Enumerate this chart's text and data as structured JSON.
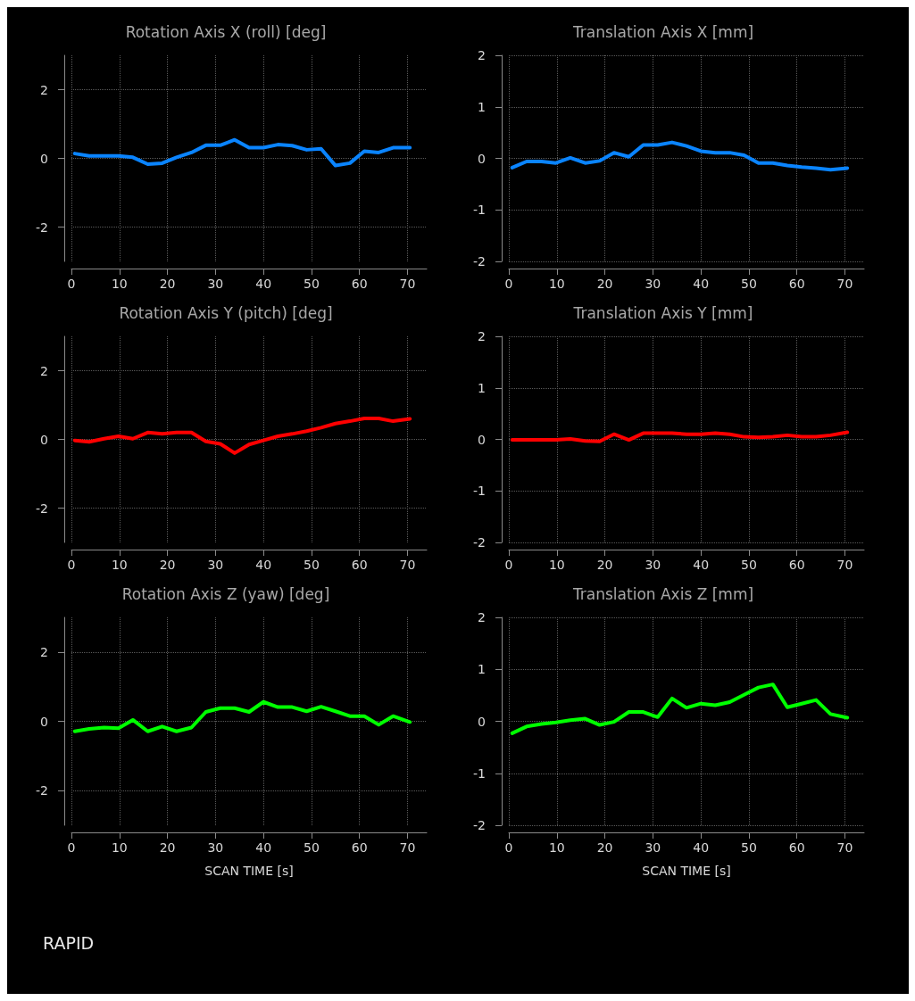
{
  "chart_data": [
    {
      "type": "line",
      "title": "Rotation Axis X (roll) [deg]",
      "x": [
        0.7,
        3.7,
        6.8,
        9.8,
        12.8,
        15.9,
        18.9,
        21.9,
        25,
        28,
        31,
        34,
        37,
        40,
        43,
        46,
        49,
        52,
        55,
        58,
        61,
        64,
        67,
        70.5
      ],
      "series": [
        {
          "color": "#0a84ff",
          "values": [
            0.14,
            0.07,
            0.07,
            0.07,
            0.03,
            -0.17,
            -0.14,
            0.03,
            0.17,
            0.38,
            0.38,
            0.54,
            0.31,
            0.31,
            0.4,
            0.37,
            0.25,
            0.28,
            -0.21,
            -0.14,
            0.21,
            0.17,
            0.31,
            0.31
          ]
        }
      ],
      "xlim": [
        0,
        74
      ],
      "xticks": [
        0,
        10,
        20,
        30,
        40,
        50,
        60,
        70
      ],
      "ylim": [
        -3,
        3
      ],
      "yticks": [
        -2,
        0,
        2
      ],
      "grid": true,
      "tick_labels": "xy"
    },
    {
      "type": "line",
      "title": "Translation Axis X [mm]",
      "x": [
        0.7,
        3.7,
        6.8,
        9.8,
        12.8,
        15.9,
        18.9,
        21.9,
        25,
        28,
        31,
        34,
        37,
        40,
        43,
        46,
        49,
        52,
        55,
        58,
        61,
        64,
        67,
        70.5
      ],
      "series": [
        {
          "color": "#0a84ff",
          "values": [
            -0.18,
            -0.06,
            -0.06,
            -0.09,
            0.01,
            -0.09,
            -0.05,
            0.11,
            0.03,
            0.26,
            0.26,
            0.31,
            0.24,
            0.14,
            0.11,
            0.11,
            0.06,
            -0.09,
            -0.09,
            -0.14,
            -0.17,
            -0.19,
            -0.22,
            -0.19
          ]
        }
      ],
      "xlim": [
        0,
        74
      ],
      "xticks": [
        0,
        10,
        20,
        30,
        40,
        50,
        60,
        70
      ],
      "ylim": [
        -2,
        2
      ],
      "yticks": [
        -2,
        -1,
        0,
        1,
        2
      ],
      "grid": true
    },
    {
      "type": "line",
      "title": "Rotation Axis Y (pitch) [deg]",
      "x": [
        0.7,
        3.7,
        6.8,
        9.8,
        12.8,
        15.9,
        18.9,
        21.9,
        25,
        28,
        31,
        34,
        37,
        40,
        43,
        46,
        49,
        52,
        55,
        58,
        61,
        64,
        67,
        70.5
      ],
      "series": [
        {
          "color": "#ff0000",
          "values": [
            -0.03,
            -0.07,
            0.02,
            0.09,
            0.02,
            0.2,
            0.16,
            0.2,
            0.2,
            -0.06,
            -0.13,
            -0.4,
            -0.15,
            -0.03,
            0.09,
            0.16,
            0.24,
            0.34,
            0.46,
            0.53,
            0.61,
            0.61,
            0.53,
            0.6
          ]
        }
      ],
      "xlim": [
        0,
        74
      ],
      "xticks": [
        0,
        10,
        20,
        30,
        40,
        50,
        60,
        70
      ],
      "ylim": [
        -3,
        3
      ],
      "yticks": [
        -2,
        0,
        2
      ],
      "grid": true
    },
    {
      "type": "line",
      "title": "Translation Axis Y [mm]",
      "x": [
        0.7,
        3.7,
        6.8,
        9.8,
        12.8,
        15.9,
        18.9,
        21.9,
        25,
        28,
        31,
        34,
        37,
        40,
        43,
        46,
        49,
        52,
        55,
        58,
        61,
        64,
        67,
        70.5
      ],
      "series": [
        {
          "color": "#ff0000",
          "values": [
            -0.01,
            -0.01,
            -0.01,
            -0.01,
            0.01,
            -0.03,
            -0.04,
            0.1,
            -0.01,
            0.12,
            0.12,
            0.12,
            0.1,
            0.1,
            0.12,
            0.1,
            0.05,
            0.04,
            0.05,
            0.08,
            0.05,
            0.05,
            0.08,
            0.14
          ]
        }
      ],
      "xlim": [
        0,
        74
      ],
      "xticks": [
        0,
        10,
        20,
        30,
        40,
        50,
        60,
        70
      ],
      "ylim": [
        -2,
        2
      ],
      "yticks": [
        -2,
        -1,
        0,
        1,
        2
      ],
      "grid": true
    },
    {
      "type": "line",
      "title": "Rotation Axis Z (yaw) [deg]",
      "xlabel": "SCAN TIME [s]",
      "annotations": [
        "RAPID"
      ],
      "x": [
        0.7,
        3.7,
        6.8,
        9.8,
        12.8,
        15.9,
        18.9,
        21.9,
        25,
        28,
        31,
        34,
        37,
        40,
        43,
        46,
        49,
        52,
        55,
        58,
        61,
        64,
        67,
        70.5
      ],
      "series": [
        {
          "color": "#00ff00",
          "values": [
            -0.29,
            -0.22,
            -0.18,
            -0.2,
            0.04,
            -0.29,
            -0.15,
            -0.29,
            -0.18,
            0.27,
            0.38,
            0.38,
            0.27,
            0.56,
            0.41,
            0.41,
            0.29,
            0.42,
            0.29,
            0.15,
            0.15,
            -0.1,
            0.15,
            -0.02
          ]
        }
      ],
      "xlim": [
        0,
        74
      ],
      "xticks": [
        0,
        10,
        20,
        30,
        40,
        50,
        60,
        70
      ],
      "ylim": [
        -3,
        3
      ],
      "yticks": [
        -2,
        0,
        2
      ],
      "grid": true
    },
    {
      "type": "line",
      "title": "Translation Axis Z [mm]",
      "xlabel": "SCAN TIME [s]",
      "x": [
        0.7,
        3.7,
        6.8,
        9.8,
        12.8,
        15.9,
        18.9,
        21.9,
        25,
        28,
        31,
        34,
        37,
        40,
        43,
        46,
        49,
        52,
        55,
        58,
        61,
        64,
        67,
        70.5
      ],
      "series": [
        {
          "color": "#00ff00",
          "values": [
            -0.23,
            -0.1,
            -0.05,
            -0.02,
            0.02,
            0.05,
            -0.07,
            -0.01,
            0.18,
            0.18,
            0.08,
            0.44,
            0.26,
            0.34,
            0.31,
            0.37,
            0.51,
            0.65,
            0.71,
            0.27,
            0.34,
            0.41,
            0.14,
            0.07
          ]
        }
      ],
      "xlim": [
        0,
        74
      ],
      "xticks": [
        0,
        10,
        20,
        30,
        40,
        50,
        60,
        70
      ],
      "ylim": [
        -2,
        2
      ],
      "yticks": [
        -2,
        -1,
        0,
        1,
        2
      ],
      "grid": true
    }
  ]
}
